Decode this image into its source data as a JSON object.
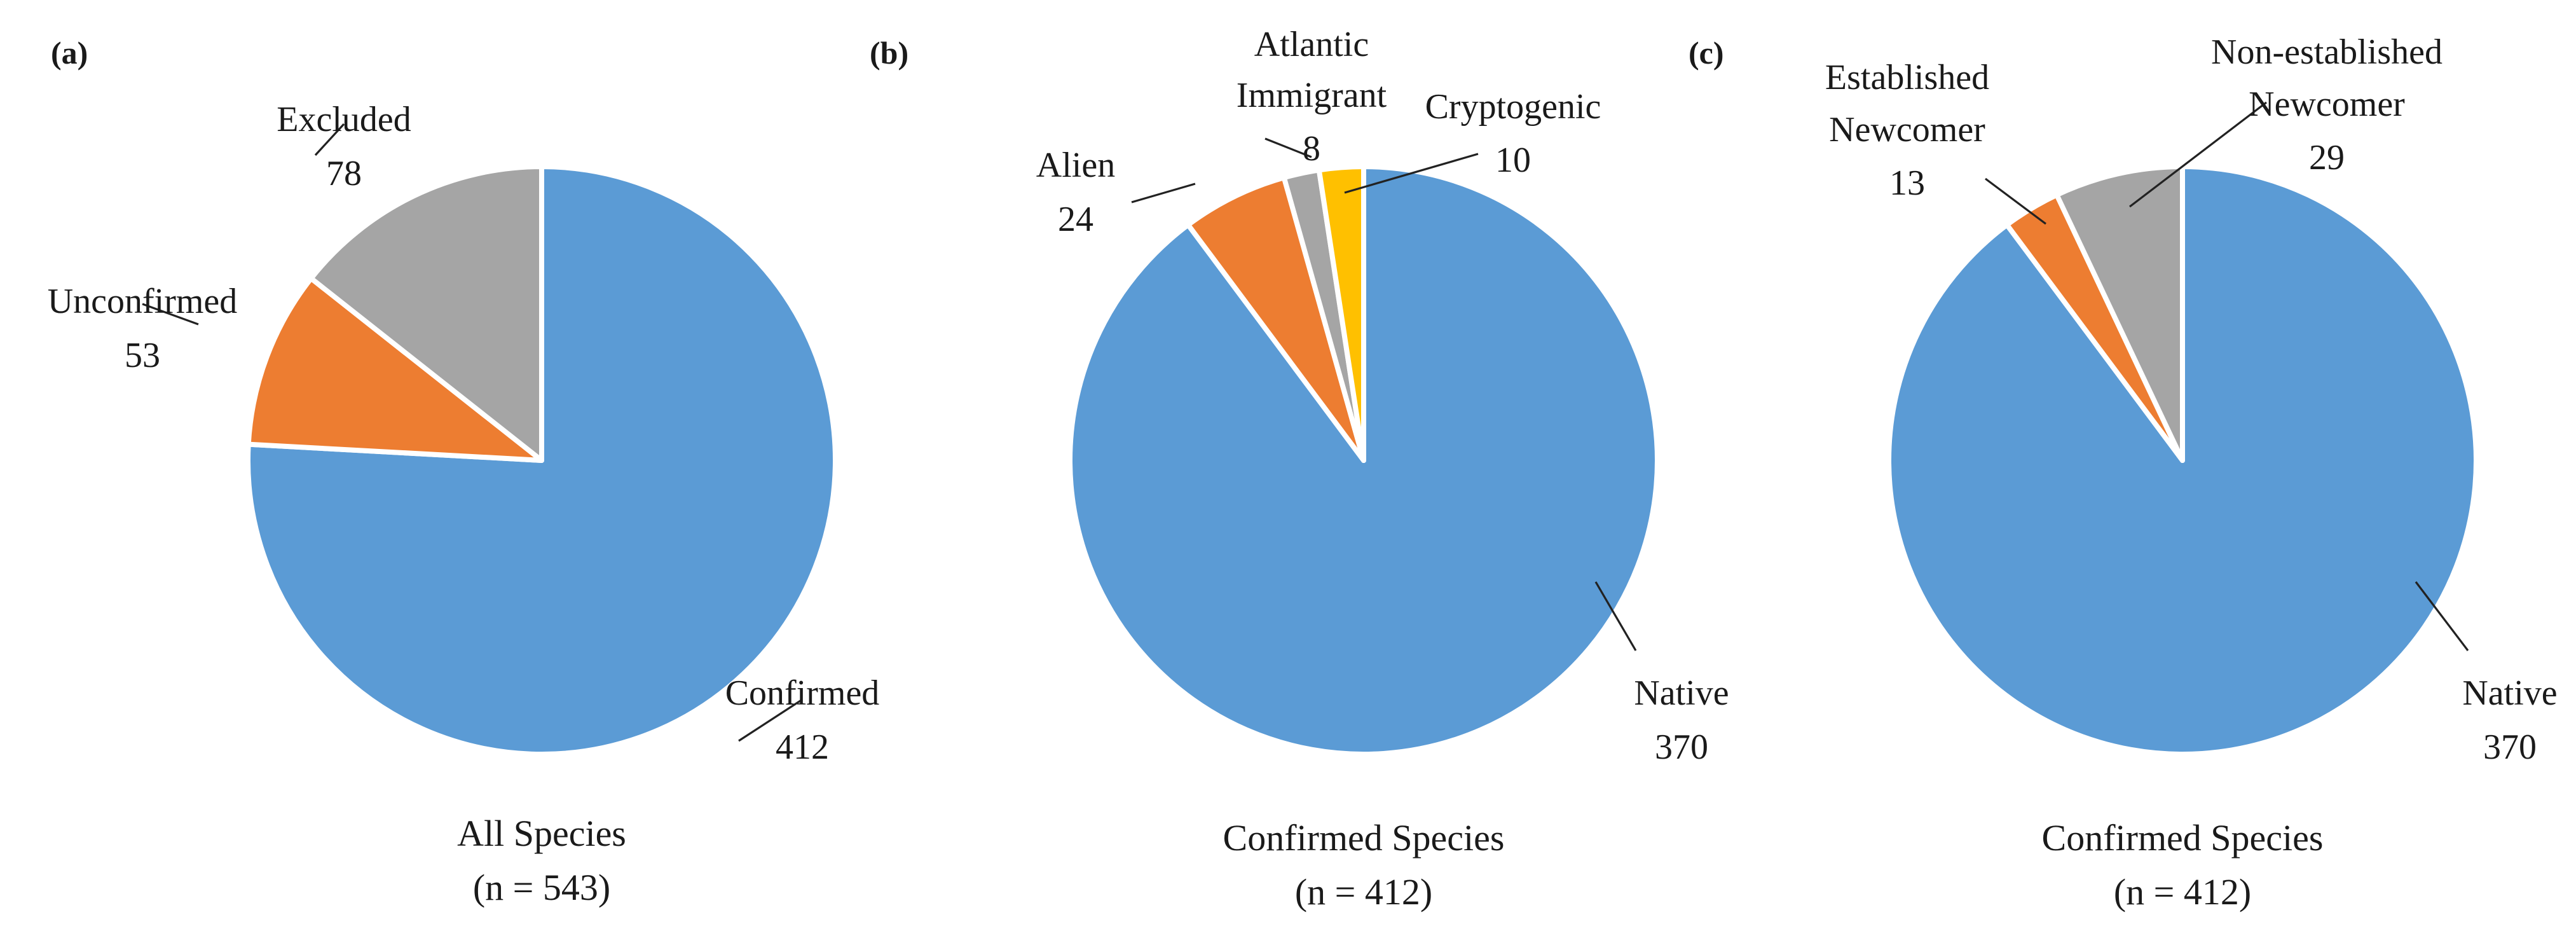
{
  "chart_data": [
    {
      "type": "pie",
      "panel": "(a)",
      "caption_line1": "All Species",
      "caption_line2": "(n = 543)",
      "start": "12 o'clock",
      "direction": "clockwise",
      "slices": [
        {
          "label": "Confirmed",
          "value": 412,
          "color": "#5b9bd5",
          "label_lines": [
            "Confirmed"
          ],
          "value_text": "412"
        },
        {
          "label": "Unconfirmed",
          "value": 53,
          "color": "#ed7d31",
          "label_lines": [
            "Unconfirmed"
          ],
          "value_text": "53"
        },
        {
          "label": "Excluded",
          "value": 78,
          "color": "#a5a5a5",
          "label_lines": [
            "Excluded"
          ],
          "value_text": "78"
        }
      ]
    },
    {
      "type": "pie",
      "panel": "(b)",
      "caption_line1": "Confirmed Species",
      "caption_line2": "(n = 412)",
      "start": "12 o'clock",
      "direction": "clockwise",
      "slices": [
        {
          "label": "Native",
          "value": 370,
          "color": "#5b9bd5",
          "label_lines": [
            "Native"
          ],
          "value_text": "370"
        },
        {
          "label": "Alien",
          "value": 24,
          "color": "#ed7d31",
          "label_lines": [
            "Alien"
          ],
          "value_text": "24"
        },
        {
          "label": "Atlantic Immigrant",
          "value": 8,
          "color": "#a5a5a5",
          "label_lines": [
            "Atlantic",
            "Immigrant"
          ],
          "value_text": "8"
        },
        {
          "label": "Cryptogenic",
          "value": 10,
          "color": "#ffc000",
          "label_lines": [
            "Cryptogenic"
          ],
          "value_text": "10"
        }
      ]
    },
    {
      "type": "pie",
      "panel": "(c)",
      "caption_line1": "Confirmed Species",
      "caption_line2": "(n = 412)",
      "start": "12 o'clock",
      "direction": "clockwise",
      "slices": [
        {
          "label": "Native",
          "value": 370,
          "color": "#5b9bd5",
          "label_lines": [
            "Native"
          ],
          "value_text": "370"
        },
        {
          "label": "Established Newcomer",
          "value": 13,
          "color": "#ed7d31",
          "label_lines": [
            "Established",
            "Newcomer"
          ],
          "value_text": "13"
        },
        {
          "label": "Non-established Newcomer",
          "value": 29,
          "color": "#a5a5a5",
          "label_lines": [
            "Non-established",
            "Newcomer"
          ],
          "value_text": "29"
        }
      ]
    }
  ]
}
